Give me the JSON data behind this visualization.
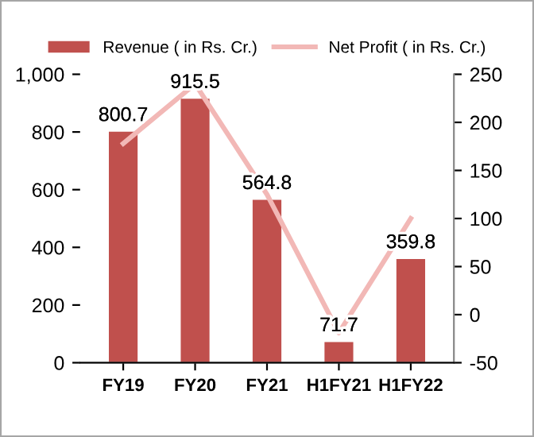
{
  "chart_data": {
    "type": "bar",
    "categories": [
      "FY19",
      "FY20",
      "FY21",
      "H1FY21",
      "H1FY22"
    ],
    "series": [
      {
        "name": "Revenue ( in Rs. Cr.)",
        "color": "#c0504d",
        "values": [
          800.7,
          915.5,
          564.8,
          71.7,
          359.8
        ],
        "data_labels": true
      },
      {
        "name": "Net Profit ( in Rs. Cr.)",
        "type": "line",
        "axis": "y2",
        "color": "#f2b8b6",
        "values": [
          178,
          240,
          125,
          -19,
          100
        ]
      }
    ],
    "ylim": [
      0,
      1000
    ],
    "yticks": [
      0,
      200,
      400,
      600,
      {
        "value": 800,
        "label": "800"
      },
      {
        "value": 1000,
        "label": "1,000"
      }
    ],
    "y2lim": [
      -50,
      250
    ],
    "y2ticks": [
      -50,
      0,
      50,
      100,
      150,
      200,
      250
    ],
    "legend": "top",
    "grid": false,
    "marker": "none"
  }
}
